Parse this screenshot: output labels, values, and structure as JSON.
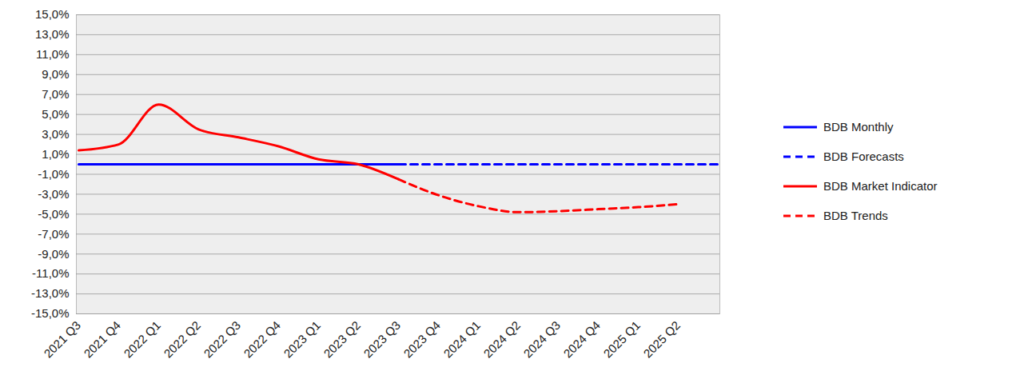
{
  "chart_data": {
    "type": "line",
    "categories": [
      "2021 Q3",
      "2021 Q4",
      "2022 Q1",
      "2022 Q2",
      "2022 Q3",
      "2022 Q4",
      "2023 Q1",
      "2023 Q2",
      "2023 Q3",
      "2023 Q4",
      "2024 Q1",
      "2024 Q2",
      "2024 Q3",
      "2024 Q4",
      "2025 Q1",
      "2025 Q2",
      null
    ],
    "series": [
      {
        "name": "BDB Monthly",
        "color": "#0000ff",
        "line_style": "solid",
        "values": [
          0,
          0,
          0,
          0,
          0,
          0,
          0,
          0,
          0,
          null,
          null,
          null,
          null,
          null,
          null,
          null,
          null
        ]
      },
      {
        "name": "BDB Forecasts",
        "color": "#0000ff",
        "line_style": "dashed",
        "values": [
          null,
          null,
          null,
          null,
          null,
          null,
          null,
          null,
          0,
          0,
          0,
          0,
          0,
          0,
          0,
          0,
          0
        ]
      },
      {
        "name": "BDB Market Indicator",
        "color": "#ff0000",
        "line_style": "solid",
        "values": [
          1.4,
          2.0,
          6.0,
          3.5,
          2.7,
          1.8,
          0.5,
          0.0,
          -1.5,
          null,
          null,
          null,
          null,
          null,
          null,
          null,
          null
        ]
      },
      {
        "name": "BDB Trends",
        "color": "#ff0000",
        "line_style": "dashed",
        "values": [
          null,
          null,
          null,
          null,
          null,
          null,
          null,
          null,
          -1.5,
          -3.1,
          -4.2,
          -4.8,
          -4.7,
          -4.5,
          -4.3,
          -4.0,
          null
        ]
      }
    ],
    "ylim": [
      -15,
      15
    ],
    "yticks": [
      {
        "value": -15,
        "label": "-15,0%"
      },
      {
        "value": -13,
        "label": "-13,0%"
      },
      {
        "value": -11,
        "label": "-11,0%"
      },
      {
        "value": -9,
        "label": "-9,0%"
      },
      {
        "value": -7,
        "label": "-7,0%"
      },
      {
        "value": -5,
        "label": "-5,0%"
      },
      {
        "value": -3,
        "label": "-3,0%"
      },
      {
        "value": -1,
        "label": "-1,0%"
      },
      {
        "value": 1,
        "label": "1,0%"
      },
      {
        "value": 3,
        "label": "3,0%"
      },
      {
        "value": 5,
        "label": "5,0%"
      },
      {
        "value": 7,
        "label": "7,0%"
      },
      {
        "value": 9,
        "label": "9,0%"
      },
      {
        "value": 11,
        "label": "11,0%"
      },
      {
        "value": 13,
        "label": "13,0%"
      },
      {
        "value": 15,
        "label": "15,0%"
      }
    ],
    "grid": true,
    "legend": "right"
  }
}
